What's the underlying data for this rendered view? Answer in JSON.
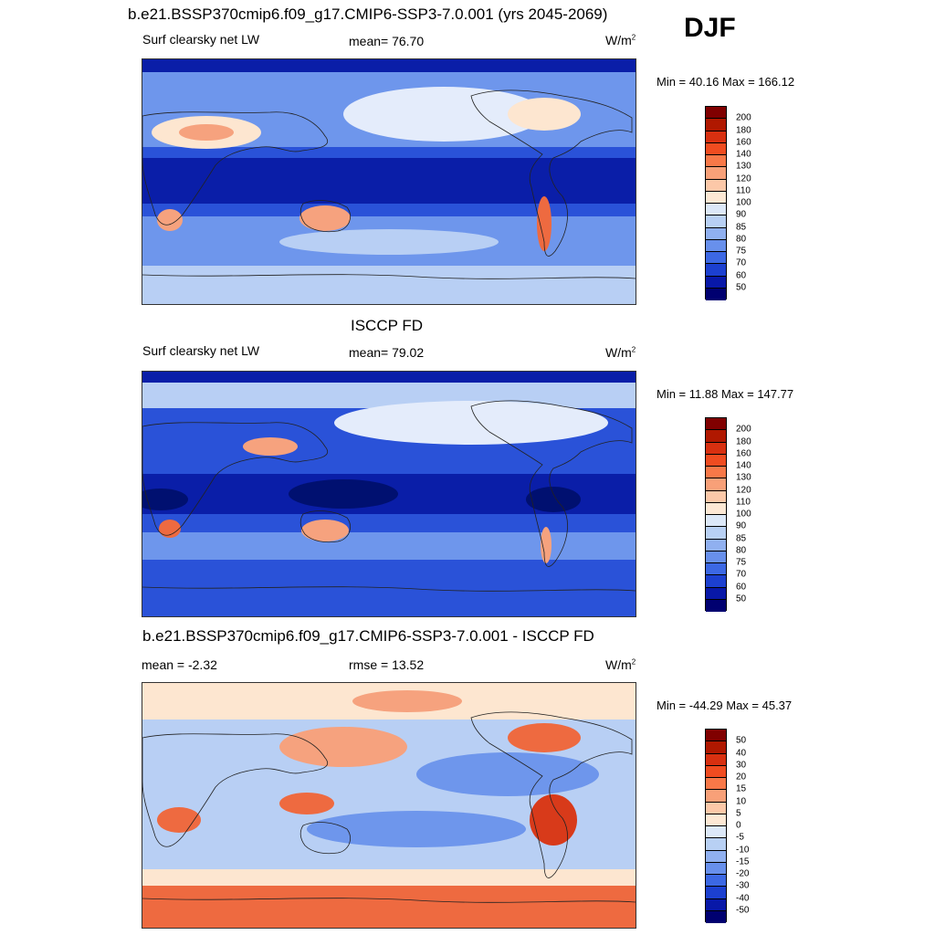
{
  "season": "DJF",
  "panels": [
    {
      "title": "b.e21.BSSP370cmip6.f09_g17.CMIP6-SSP3-7.0.001 (yrs 2045-2069)",
      "left_label": "Surf clearsky net LW",
      "center_label": "mean=  76.70",
      "units": "W/m",
      "units_sup": "2",
      "minmax": "Min =  40.16 Max = 166.12",
      "levels": [
        "200",
        "180",
        "160",
        "140",
        "130",
        "120",
        "110",
        "100",
        "90",
        "85",
        "80",
        "75",
        "70",
        "60",
        "50"
      ]
    },
    {
      "title": "ISCCP FD",
      "left_label": "Surf clearsky net LW",
      "center_label": "mean=  79.02",
      "units": "W/m",
      "units_sup": "2",
      "minmax": "Min =  11.88 Max = 147.77",
      "levels": [
        "200",
        "180",
        "160",
        "140",
        "130",
        "120",
        "110",
        "100",
        "90",
        "85",
        "80",
        "75",
        "70",
        "60",
        "50"
      ]
    },
    {
      "title": "b.e21.BSSP370cmip6.f09_g17.CMIP6-SSP3-7.0.001 - ISCCP FD",
      "left_label": "mean =  -2.32",
      "center_label": "rmse =  13.52",
      "units": "W/m",
      "units_sup": "2",
      "minmax": "Min = -44.29 Max =  45.37",
      "levels": [
        "50",
        "40",
        "30",
        "20",
        "15",
        "10",
        "5",
        "0",
        "-5",
        "-10",
        "-15",
        "-20",
        "-30",
        "-40",
        "-50"
      ]
    }
  ],
  "colorbar_colors": [
    "#800000",
    "#b01800",
    "#d83010",
    "#f04c20",
    "#f87848",
    "#f8a078",
    "#fcc8a8",
    "#fde8d4",
    "#dce8f8",
    "#b8d0f4",
    "#90b0f0",
    "#6890ec",
    "#3c68e4",
    "#1c40d0",
    "#0818a8",
    "#000070"
  ],
  "map_colors": {
    "deep_blue": "#0a1ea8",
    "mid_blue": "#2a52d8",
    "light_blue": "#6e96ec",
    "pale_blue": "#b8cff4",
    "very_pale": "#e4ecfb",
    "cream": "#fde6d0",
    "salmon": "#f6a27e",
    "orange": "#ee6a40",
    "red": "#d83a1a",
    "navy": "#001070"
  }
}
